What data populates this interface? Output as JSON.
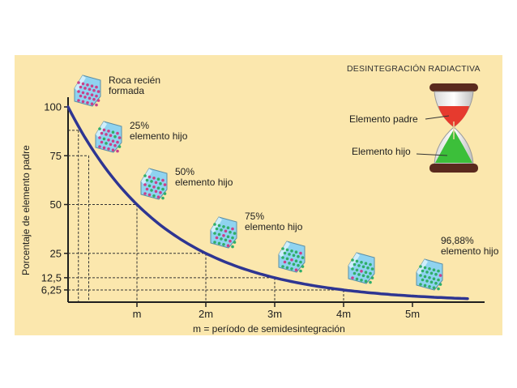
{
  "chart_data": {
    "type": "line",
    "title": "DESINTEGRACIÓN RADIACTIVA",
    "ylabel": "Porcentaje de elemento padre",
    "xlabel": "m = período de semidesintegración",
    "x": [
      0,
      0.3,
      1,
      2,
      3,
      4,
      5,
      5.8
    ],
    "x_ticks": [
      {
        "value": 1,
        "label": "m"
      },
      {
        "value": 2,
        "label": "2m"
      },
      {
        "value": 3,
        "label": "3m"
      },
      {
        "value": 4,
        "label": "4m"
      },
      {
        "value": 5,
        "label": "5m"
      }
    ],
    "y_ticks": [
      {
        "value": 100,
        "label": "100"
      },
      {
        "value": 75,
        "label": "75"
      },
      {
        "value": 50,
        "label": "50"
      },
      {
        "value": 25,
        "label": "25"
      },
      {
        "value": 12.5,
        "label": "12,5"
      },
      {
        "value": 6.25,
        "label": "6,25"
      }
    ],
    "xlim": [
      0,
      5.8
    ],
    "ylim": [
      0,
      103
    ],
    "dashed_guides": [
      {
        "x": 0.15,
        "y": 88
      },
      {
        "x": 0.3,
        "y": 75
      },
      {
        "x": 1,
        "y": 50
      },
      {
        "x": 2,
        "y": 25
      },
      {
        "x": 3,
        "y": 12.5
      },
      {
        "x": 4,
        "y": 6.25
      }
    ],
    "annotations": [
      {
        "line1": "Roca recién",
        "line2": "formada"
      },
      {
        "line1": "25%",
        "line2": "elemento hijo"
      },
      {
        "line1": "50%",
        "line2": "elemento hijo"
      },
      {
        "line1": "75%",
        "line2": "elemento hijo"
      },
      {
        "line1": "96,88%",
        "line2": "elemento hijo"
      }
    ],
    "hourglass_labels": {
      "parent": "Elemento padre",
      "child": "Elemento hijo"
    },
    "colors": {
      "background": "#fbe7ad",
      "curve": "#2e3592",
      "axis": "#1e1e1e",
      "parent_sand": "#e63a2e",
      "child_sand": "#3cbf3a",
      "hourglass_frame": "#5a2a1e",
      "crystal_parent_dot": "#c9408a",
      "crystal_child_dot": "#2fae68",
      "crystal_face": "#8fd3f0"
    }
  }
}
